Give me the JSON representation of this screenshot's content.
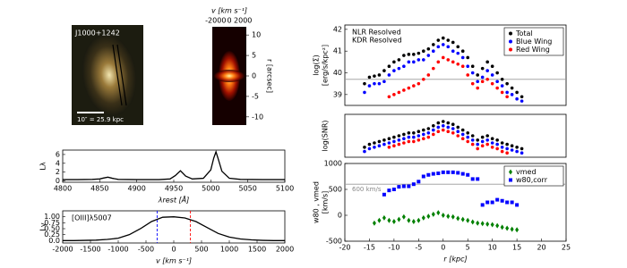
{
  "chart_data": [
    {
      "type": "image",
      "label": "J1000+1242",
      "scale_label": "10″ = 25.9 kpc"
    },
    {
      "type": "image",
      "xlabel": "v [km s⁻¹]",
      "xlim": [
        -2500,
        2500
      ],
      "xticks": [
        -2000,
        0,
        2000
      ],
      "ylabel": "r [arcsec]",
      "ylim": [
        -12,
        12
      ],
      "yticks": [
        10,
        5,
        0,
        -5,
        -10
      ]
    },
    {
      "type": "line",
      "xlabel": "λrest [Å]",
      "ylabel": "Lλ",
      "xlim": [
        4800,
        5100
      ],
      "xticks": [
        4800,
        4850,
        4900,
        4950,
        5000,
        5050,
        5100
      ],
      "ylim": [
        -0.3,
        7
      ],
      "yticks": [
        0,
        2,
        4,
        6
      ],
      "x": [
        4800,
        4820,
        4840,
        4850,
        4855,
        4861,
        4867,
        4875,
        4900,
        4930,
        4945,
        4952,
        4959,
        4966,
        4975,
        4990,
        5000,
        5004,
        5007,
        5010,
        5015,
        5025,
        5040,
        5070,
        5100
      ],
      "series": [
        {
          "color": "#000000",
          "values": [
            0.3,
            0.3,
            0.35,
            0.45,
            0.65,
            0.85,
            0.6,
            0.35,
            0.3,
            0.3,
            0.45,
            1.2,
            2.3,
            1.1,
            0.45,
            0.6,
            2.5,
            5.2,
            6.6,
            5.0,
            2.2,
            0.6,
            0.35,
            0.3,
            0.3
          ]
        }
      ]
    },
    {
      "type": "line",
      "xlabel": "v [km s⁻¹]",
      "ylabel": "Lv",
      "annotation": "[OIII]λ5007",
      "xlim": [
        -2000,
        2000
      ],
      "xticks": [
        -2000,
        -1500,
        -1000,
        -500,
        0,
        500,
        1000,
        1500,
        2000
      ],
      "ylim": [
        -0.1,
        1.25
      ],
      "yticks": [
        {
          "value": 0,
          "label": "0.0"
        },
        0.25,
        {
          "value": 0.5,
          "label": "0.50"
        },
        0.75,
        {
          "value": 1,
          "label": "1.00"
        }
      ],
      "vlines": [
        {
          "value": -300,
          "color": "#0000ff"
        },
        {
          "value": 300,
          "color": "#ff0000"
        }
      ],
      "x": [
        -2000,
        -1800,
        -1600,
        -1400,
        -1200,
        -1000,
        -800,
        -600,
        -400,
        -200,
        0,
        200,
        400,
        600,
        800,
        1000,
        1200,
        1400,
        1600,
        1800,
        2000
      ],
      "series": [
        {
          "color": "#000000",
          "values": [
            0,
            0,
            0.01,
            0.02,
            0.05,
            0.1,
            0.25,
            0.5,
            0.8,
            0.98,
            1.0,
            0.95,
            0.8,
            0.55,
            0.3,
            0.15,
            0.07,
            0.03,
            0.01,
            0,
            0
          ]
        }
      ]
    },
    {
      "type": "scatter",
      "ylabel": "log(Σ)",
      "ylabel2": "[erg/s/kpc²]",
      "annotations": [
        "NLR Resolved",
        "KDR Resolved"
      ],
      "legend": "upper right",
      "hline": 39.7,
      "xlim": [
        -20,
        25
      ],
      "ylim": [
        38.5,
        42.2
      ],
      "yticks": [
        39,
        40,
        41,
        42
      ],
      "x": [
        -16,
        -15,
        -14,
        -13,
        -12,
        -11,
        -10,
        -9,
        -8,
        -7,
        -6,
        -5,
        -4,
        -3,
        -2,
        -1,
        0,
        1,
        2,
        3,
        4,
        5,
        6,
        7,
        8,
        9,
        10,
        11,
        12,
        13,
        14,
        15,
        16
      ],
      "series": [
        {
          "name": "Total",
          "color": "#000000",
          "values": [
            39.5,
            39.8,
            39.85,
            39.9,
            40.1,
            40.3,
            40.5,
            40.6,
            40.8,
            40.85,
            40.85,
            40.9,
            41.0,
            41.1,
            41.3,
            41.5,
            41.6,
            41.5,
            41.4,
            41.2,
            41.0,
            40.7,
            40.3,
            39.9,
            40.2,
            40.5,
            40.3,
            40.0,
            39.7,
            39.5,
            39.3,
            39.1,
            38.9
          ]
        },
        {
          "name": "Blue Wing",
          "color": "#0000ff",
          "values": [
            39.1,
            39.4,
            39.5,
            39.5,
            39.6,
            39.9,
            40.1,
            40.2,
            40.3,
            40.5,
            40.5,
            40.6,
            40.6,
            40.8,
            41.0,
            41.2,
            41.3,
            41.2,
            41.0,
            40.9,
            40.7,
            40.3,
            40.0,
            39.6,
            39.8,
            40.1,
            39.9,
            39.6,
            39.4,
            39.1,
            39.0,
            38.8,
            38.7
          ]
        },
        {
          "name": "Red Wing",
          "color": "#ff0000",
          "values": [
            null,
            null,
            null,
            null,
            null,
            38.9,
            39.0,
            39.1,
            39.2,
            39.3,
            39.4,
            39.5,
            39.7,
            39.9,
            40.2,
            40.5,
            40.7,
            40.6,
            40.5,
            40.4,
            40.3,
            39.9,
            39.5,
            39.3,
            39.6,
            39.7,
            39.5,
            39.3,
            39.1,
            38.9,
            null,
            null,
            null
          ]
        }
      ]
    },
    {
      "type": "scatter",
      "ylabel": "log(SNR)",
      "xlim": [
        -20,
        25
      ],
      "ylim": [
        0.3,
        3.3
      ],
      "x": [
        -16,
        -15,
        -14,
        -13,
        -12,
        -11,
        -10,
        -9,
        -8,
        -7,
        -6,
        -5,
        -4,
        -3,
        -2,
        -1,
        0,
        1,
        2,
        3,
        4,
        5,
        6,
        7,
        8,
        9,
        10,
        11,
        12,
        13,
        14,
        15,
        16
      ],
      "series": [
        {
          "color": "#000000",
          "values": [
            1.0,
            1.2,
            1.3,
            1.4,
            1.5,
            1.6,
            1.7,
            1.8,
            1.9,
            2.0,
            2.0,
            2.1,
            2.2,
            2.3,
            2.5,
            2.7,
            2.8,
            2.7,
            2.6,
            2.4,
            2.2,
            2.0,
            1.8,
            1.5,
            1.7,
            1.8,
            1.6,
            1.5,
            1.3,
            1.2,
            1.1,
            1.0,
            0.9
          ]
        },
        {
          "color": "#0000ff",
          "values": [
            0.7,
            0.9,
            1.0,
            1.1,
            1.2,
            1.3,
            1.4,
            1.5,
            1.6,
            1.7,
            1.7,
            1.8,
            1.9,
            2.0,
            2.2,
            2.4,
            2.5,
            2.4,
            2.3,
            2.1,
            1.9,
            1.7,
            1.5,
            1.2,
            1.4,
            1.5,
            1.3,
            1.2,
            1.0,
            0.9,
            0.8,
            0.7,
            0.6
          ]
        },
        {
          "color": "#ff0000",
          "values": [
            null,
            null,
            null,
            null,
            null,
            1.0,
            1.1,
            1.2,
            1.3,
            1.4,
            1.4,
            1.5,
            1.6,
            1.7,
            1.9,
            2.1,
            2.2,
            2.1,
            2.0,
            1.8,
            1.6,
            1.4,
            1.2,
            0.9,
            1.1,
            1.2,
            1.0,
            0.9,
            0.7,
            0.6,
            null,
            null,
            null
          ]
        }
      ]
    },
    {
      "type": "scatter",
      "ylabel": "w80 , vmed",
      "ylabel2": "[km/s]",
      "xlabel": "r [kpc]",
      "legend": "upper right",
      "hline": 600,
      "hline_label": "600 km/s",
      "xlim": [
        -20,
        25
      ],
      "xticks": [
        -20,
        -15,
        -10,
        -5,
        0,
        5,
        10,
        15,
        20,
        25
      ],
      "ylim": [
        -500,
        1000
      ],
      "yticks": [
        -500,
        0,
        500,
        1000
      ],
      "x": [
        -16,
        -15,
        -14,
        -13,
        -12,
        -11,
        -10,
        -9,
        -8,
        -7,
        -6,
        -5,
        -4,
        -3,
        -2,
        -1,
        0,
        1,
        2,
        3,
        4,
        5,
        6,
        7,
        8,
        9,
        10,
        11,
        12,
        13,
        14,
        15,
        16
      ],
      "series": [
        {
          "name": "vmed",
          "color": "#008000",
          "marker": "diamond",
          "values": [
            null,
            null,
            -150,
            -100,
            -50,
            -100,
            -120,
            -80,
            -30,
            -100,
            -120,
            -100,
            -50,
            -20,
            20,
            50,
            0,
            -20,
            -30,
            -60,
            -80,
            -100,
            -130,
            -150,
            -160,
            -170,
            -180,
            -200,
            -230,
            -250,
            -270,
            -280,
            null
          ]
        },
        {
          "name": "w80,corr",
          "color": "#0000ff",
          "marker": "square",
          "values": [
            null,
            null,
            null,
            null,
            400,
            480,
            500,
            550,
            560,
            560,
            600,
            650,
            750,
            780,
            800,
            810,
            830,
            830,
            830,
            820,
            800,
            780,
            700,
            700,
            200,
            250,
            250,
            300,
            280,
            250,
            250,
            200,
            null
          ]
        }
      ]
    }
  ]
}
